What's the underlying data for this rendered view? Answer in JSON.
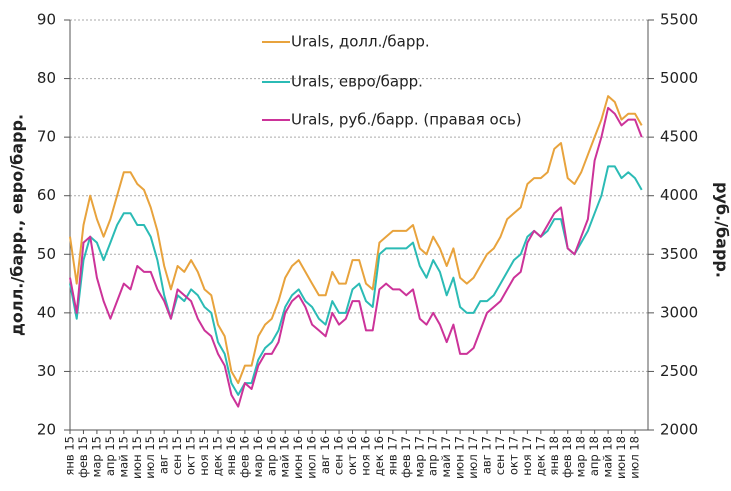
{
  "chart_data": {
    "type": "line",
    "y_label": "долл./барр., евро/барр.",
    "y2_label": "руб./барр.",
    "categories": [
      "янв 15",
      null,
      "фев 15",
      null,
      "мар 15",
      null,
      "апр 15",
      null,
      "май 15",
      null,
      "июн 15",
      null,
      "июл 15",
      null,
      "авг 15",
      null,
      "сен 15",
      null,
      "окт 15",
      null,
      "ноя 15",
      null,
      "дек 15",
      null,
      "янв 16",
      null,
      "фев 16",
      null,
      "мар 16",
      null,
      "апр 16",
      null,
      "май 16",
      null,
      "июн 16",
      null,
      "июл 16",
      null,
      "авг 16",
      null,
      "сен 16",
      null,
      "окт 16",
      null,
      "ноя 16",
      null,
      "дек 16",
      null,
      "янв 17",
      null,
      "фев 17",
      null,
      "мар 17",
      null,
      "апр 17",
      null,
      "май 17",
      null,
      "июн 17",
      null,
      "июл 17",
      null,
      "авг 17",
      null,
      "сен 17",
      null,
      "окт 17",
      null,
      "ноя 17",
      null,
      "дек 17",
      null,
      "янв 18",
      null,
      "фев 18",
      null,
      "мар 18",
      null,
      "апр 18",
      null,
      "май 18",
      null,
      "июн 18",
      null,
      "июл 18",
      null
    ],
    "series": [
      {
        "name": "Urals, долл./барр.",
        "color": "#e8a33d",
        "values": [
          53,
          45,
          55,
          60,
          56,
          53,
          56,
          60,
          64,
          64,
          62,
          61,
          58,
          54,
          48,
          44,
          48,
          47,
          49,
          47,
          44,
          43,
          38,
          36,
          30,
          28,
          31,
          31,
          36,
          38,
          39,
          42,
          46,
          48,
          49,
          47,
          45,
          43,
          43,
          47,
          45,
          45,
          49,
          49,
          45,
          44,
          52,
          53,
          54,
          54,
          54,
          55,
          51,
          50,
          53,
          51,
          48,
          51,
          46,
          45,
          46,
          48,
          50,
          51,
          53,
          56,
          57,
          58,
          62,
          63,
          63,
          64,
          68,
          69,
          63,
          62,
          64,
          67,
          70,
          73,
          77,
          76,
          73,
          74,
          74,
          72
        ]
      },
      {
        "name": "Urals, евро/барр.",
        "color": "#2bbbb5",
        "values": [
          45,
          39,
          49,
          53,
          52,
          49,
          52,
          55,
          57,
          57,
          55,
          55,
          53,
          49,
          43,
          39,
          43,
          42,
          44,
          43,
          41,
          40,
          35,
          33,
          28,
          26,
          28,
          28,
          32,
          34,
          35,
          37,
          41,
          43,
          44,
          42,
          41,
          39,
          38,
          42,
          40,
          40,
          44,
          45,
          42,
          41,
          50,
          51,
          51,
          51,
          51,
          52,
          48,
          46,
          49,
          47,
          43,
          46,
          41,
          40,
          40,
          42,
          42,
          43,
          45,
          47,
          49,
          50,
          53,
          54,
          53,
          54,
          56,
          56,
          51,
          50,
          52,
          54,
          57,
          60,
          65,
          65,
          63,
          64,
          63,
          61
        ]
      },
      {
        "name": "Urals, руб./барр. (правая ось)",
        "color": "#cc3399",
        "axis": "y2",
        "values": [
          3300,
          3000,
          3600,
          3650,
          3300,
          3100,
          2950,
          3100,
          3250,
          3200,
          3400,
          3350,
          3350,
          3200,
          3100,
          2950,
          3200,
          3150,
          3100,
          2950,
          2850,
          2800,
          2650,
          2550,
          2300,
          2200,
          2400,
          2350,
          2550,
          2650,
          2650,
          2750,
          3000,
          3100,
          3150,
          3050,
          2900,
          2850,
          2800,
          3000,
          2900,
          2950,
          3100,
          3100,
          2850,
          2850,
          3200,
          3250,
          3200,
          3200,
          3150,
          3200,
          2950,
          2900,
          3000,
          2900,
          2750,
          2900,
          2650,
          2650,
          2700,
          2850,
          3000,
          3050,
          3100,
          3200,
          3300,
          3350,
          3600,
          3700,
          3650,
          3750,
          3850,
          3900,
          3550,
          3500,
          3650,
          3800,
          4300,
          4500,
          4750,
          4700,
          4600,
          4650,
          4650,
          4500
        ]
      }
    ],
    "ylim": [
      20,
      90
    ],
    "yticks": [
      20,
      30,
      40,
      50,
      60,
      70,
      80,
      90
    ],
    "y2lim": [
      2000,
      5500
    ],
    "y2ticks": [
      2000,
      2500,
      3000,
      3500,
      4000,
      4500,
      5000,
      5500
    ],
    "grid": true
  }
}
